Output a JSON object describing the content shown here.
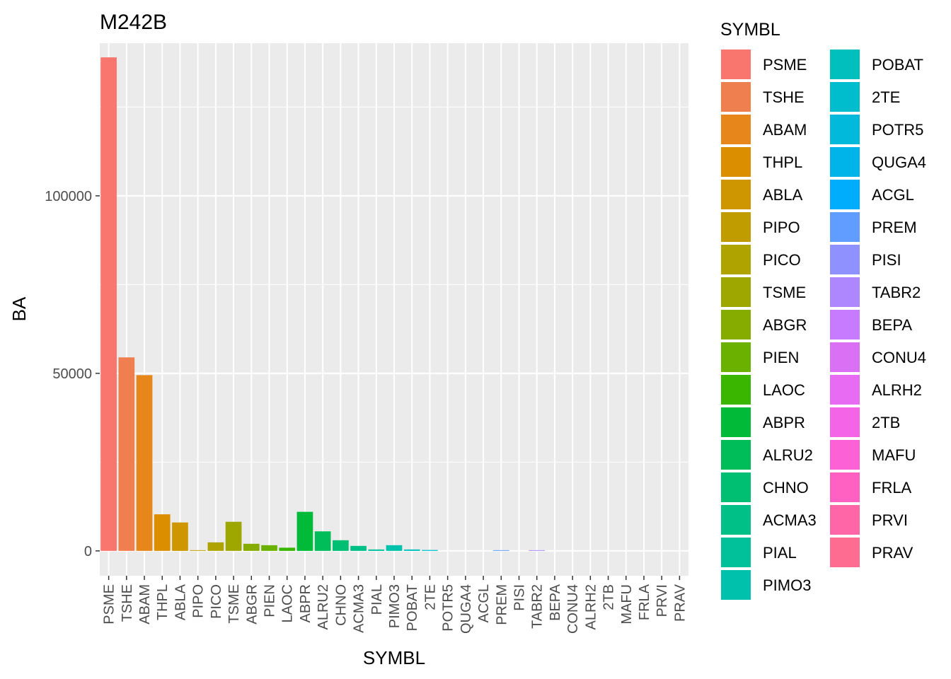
{
  "chart_data": {
    "type": "bar",
    "title": "M242B",
    "xlabel": "SYMBL",
    "ylabel": "BA",
    "ylim": [
      -7000,
      143000
    ],
    "yticks": [
      0,
      50000,
      100000
    ],
    "ytick_labels": [
      "0",
      "50000",
      "100000"
    ],
    "grid": true,
    "legend": {
      "title": "SYMBL",
      "placement": "right",
      "columns": 2
    },
    "categories": [
      "PSME",
      "TSHE",
      "ABAM",
      "THPL",
      "ABLA",
      "PIPO",
      "PICO",
      "TSME",
      "ABGR",
      "PIEN",
      "LAOC",
      "ABPR",
      "ALRU2",
      "CHNO",
      "ACMA3",
      "PIAL",
      "PIMO3",
      "POBAT",
      "2TE",
      "POTR5",
      "QUGA4",
      "ACGL",
      "PREM",
      "PISI",
      "TABR2",
      "BEPA",
      "CONU4",
      "ALRH2",
      "2TB",
      "MAFU",
      "FRLA",
      "PRVI",
      "PRAV"
    ],
    "values": [
      139000,
      54500,
      49500,
      10300,
      8000,
      200,
      2400,
      8200,
      2000,
      1600,
      900,
      11000,
      5500,
      3000,
      1400,
      400,
      1600,
      400,
      250,
      0,
      0,
      0,
      200,
      0,
      150,
      0,
      0,
      0,
      0,
      0,
      0,
      0,
      0
    ],
    "colors": [
      "#F8766D",
      "#F07F4F",
      "#E7861B",
      "#DB8E00",
      "#CE9600",
      "#C09C00",
      "#AFA300",
      "#9DA700",
      "#86AC00",
      "#6BB100",
      "#3AB600",
      "#00BA38",
      "#00BC59",
      "#00BE72",
      "#00C087",
      "#00C19A",
      "#00C1AC",
      "#00BFBD",
      "#00BDCD",
      "#00B9DB",
      "#00B3E8",
      "#00ACFC",
      "#619CFF",
      "#8F91FF",
      "#AE87FF",
      "#C77CFF",
      "#DA71F5",
      "#E76BF3",
      "#F365E6",
      "#FC61D5",
      "#FF61C3",
      "#FF66A8",
      "#FF6C91"
    ]
  }
}
